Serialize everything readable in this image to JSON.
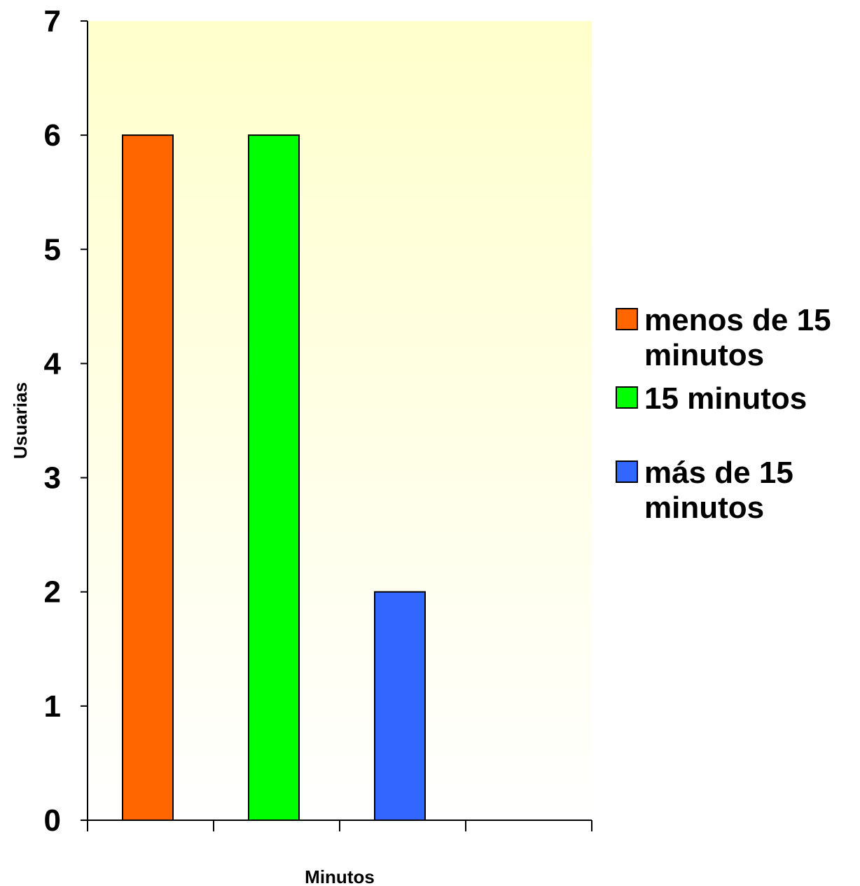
{
  "chart_data": {
    "type": "bar",
    "title": "",
    "xlabel": "Minutos",
    "ylabel": "Usuarias",
    "ylim": [
      0,
      7
    ],
    "yticks": [
      0,
      1,
      2,
      3,
      4,
      5,
      6,
      7
    ],
    "grid": false,
    "legend_position": "right",
    "categories": [
      ""
    ],
    "series": [
      {
        "name": "menos de 15 minutos",
        "values": [
          6
        ],
        "color": "#FF6600"
      },
      {
        "name": "15 minutos",
        "values": [
          6
        ],
        "color": "#00FF00"
      },
      {
        "name": "más de 15 minutos",
        "values": [
          2
        ],
        "color": "#3366FF"
      }
    ],
    "legend": [
      {
        "lines": [
          "menos de 15",
          "minutos"
        ],
        "color": "#FF6600"
      },
      {
        "lines": [
          "15 minutos"
        ],
        "color": "#00FF00"
      },
      {
        "lines": [
          "más de 15",
          "minutos"
        ],
        "color": "#3366FF"
      }
    ],
    "plot_background": {
      "top": "#FFFFCC",
      "bottom": "#FFFFFF"
    }
  }
}
